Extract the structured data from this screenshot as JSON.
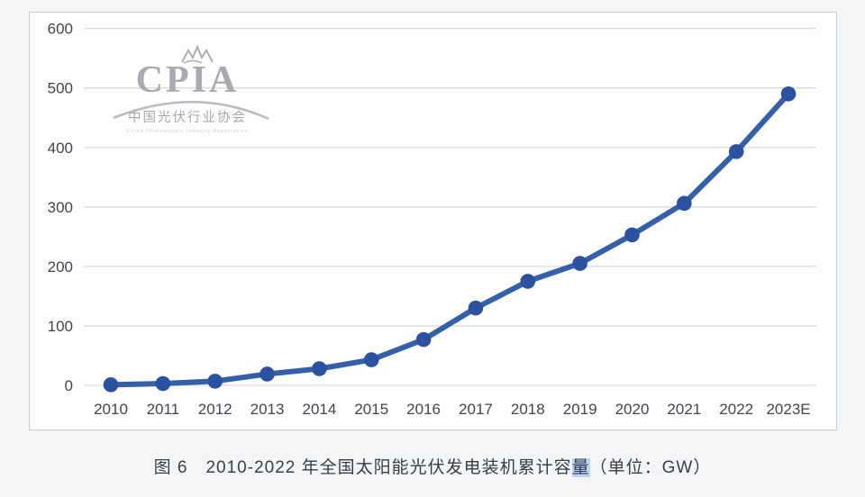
{
  "chart_data": {
    "type": "line",
    "title": "2010-2022 年全国太阳能光伏发电装机累计容量",
    "unit": "GW",
    "categories": [
      "2010",
      "2011",
      "2012",
      "2013",
      "2014",
      "2015",
      "2016",
      "2017",
      "2018",
      "2019",
      "2020",
      "2021",
      "2022",
      "2023E"
    ],
    "values": [
      1,
      3,
      7,
      19,
      28,
      43,
      77,
      130,
      175,
      205,
      253,
      306,
      393,
      490
    ],
    "series_name": "全国太阳能光伏发电装机累计容量",
    "xlabel": "",
    "ylabel": "",
    "ylim": [
      0,
      600
    ],
    "yticks": [
      0,
      100,
      200,
      300,
      400,
      500,
      600
    ],
    "grid": "horizontal",
    "legend": "none",
    "line_color": "#345fa9",
    "point_color": "#2b52a0",
    "grid_color": "#d9dbdf",
    "tick_color": "#43464e"
  },
  "caption": {
    "prefix": "图 6　2010-2022 年全国太阳能光伏发电装机累计容",
    "highlight": "量",
    "suffix": "（单位：GW）"
  },
  "logo": {
    "acronym": "CPIA",
    "org_name_cn": "中国光伏行业协会",
    "org_name_en": "China Photovoltaic Industry Association",
    "color": "#a6a8ae"
  }
}
